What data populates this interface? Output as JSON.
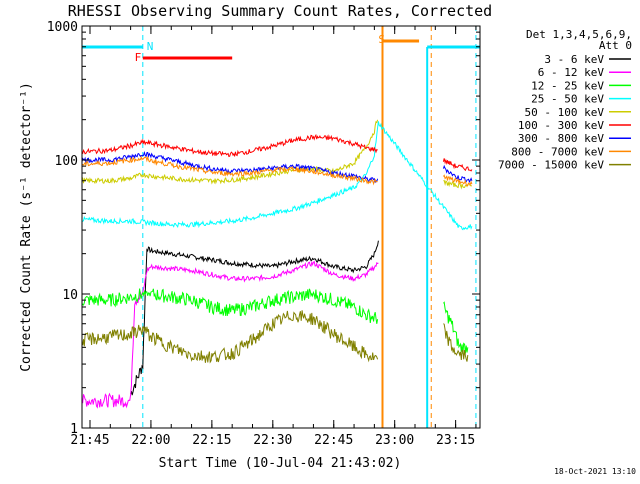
{
  "chart_data": {
    "type": "line",
    "title": "RHESSI Observing Summary Count Rates, Corrected",
    "xlabel": "Start Time (10-Jul-04 21:43:02)",
    "ylabel": "Corrected Count Rate (s⁻¹ detector⁻¹)",
    "yscale": "log",
    "ylim": [
      1,
      1000
    ],
    "xlim": [
      "21:43:02",
      "23:21:00"
    ],
    "x_ticks": [
      "21:45",
      "22:00",
      "22:15",
      "22:30",
      "22:45",
      "23:00",
      "23:15"
    ],
    "y_ticks": [
      "1",
      "10",
      "100",
      "1000"
    ],
    "grid": false,
    "legend": {
      "placement": "right",
      "header": [
        "Det 1,3,4,5,6,9,",
        "Att 0"
      ]
    },
    "flag_labels": {
      "night": "N",
      "flare": "F",
      "saa": "S"
    },
    "intervals": {
      "night": [
        [
          "21:43",
          "21:58"
        ],
        [
          "23:08",
          "23:21"
        ]
      ],
      "flare": [
        [
          "21:58",
          "22:20"
        ]
      ],
      "saa": [
        [
          "22:57",
          "23:06"
        ]
      ]
    },
    "data_gaps": [
      [
        "22:56",
        "23:12"
      ]
    ],
    "vlines": {
      "night_dashed": [
        "21:58",
        "23:20"
      ],
      "saa_solid": [
        "22:57"
      ],
      "saa_dashed": [
        "23:09"
      ]
    },
    "series": [
      {
        "name": "3 - 6 keV",
        "color": "#000000",
        "points": [
          [
            "21:55",
            1.8
          ],
          [
            "21:57",
            2.5
          ],
          [
            "21:58",
            3
          ],
          [
            "21:59",
            22
          ],
          [
            "22:00",
            21
          ],
          [
            "22:05",
            20
          ],
          [
            "22:10",
            19
          ],
          [
            "22:15",
            18
          ],
          [
            "22:20",
            17
          ],
          [
            "22:25",
            16.5
          ],
          [
            "22:30",
            16
          ],
          [
            "22:35",
            17.5
          ],
          [
            "22:40",
            18.5
          ],
          [
            "22:45",
            16
          ],
          [
            "22:50",
            15
          ],
          [
            "22:53",
            16
          ],
          [
            "22:55",
            20
          ],
          [
            "22:56",
            25
          ]
        ]
      },
      {
        "name": "6 - 12 keV",
        "color": "#ff00ff",
        "points": [
          [
            "21:43",
            1.6
          ],
          [
            "21:50",
            1.6
          ],
          [
            "21:55",
            1.6
          ],
          [
            "21:56",
            9
          ],
          [
            "21:58",
            10
          ],
          [
            "21:59",
            15
          ],
          [
            "22:00",
            16
          ],
          [
            "22:05",
            15.5
          ],
          [
            "22:10",
            15
          ],
          [
            "22:15",
            14
          ],
          [
            "22:20",
            13
          ],
          [
            "22:25",
            13
          ],
          [
            "22:30",
            13.5
          ],
          [
            "22:35",
            15
          ],
          [
            "22:40",
            17
          ],
          [
            "22:45",
            14
          ],
          [
            "22:50",
            13
          ],
          [
            "22:53",
            14
          ],
          [
            "22:56",
            17
          ]
        ]
      },
      {
        "name": "12 - 25 keV",
        "color": "#00ff00",
        "points": [
          [
            "21:43",
            9
          ],
          [
            "21:50",
            9
          ],
          [
            "21:55",
            9.5
          ],
          [
            "21:58",
            10
          ],
          [
            "22:00",
            10
          ],
          [
            "22:05",
            9.5
          ],
          [
            "22:10",
            9
          ],
          [
            "22:15",
            8
          ],
          [
            "22:20",
            7.5
          ],
          [
            "22:25",
            8
          ],
          [
            "22:30",
            9
          ],
          [
            "22:35",
            9.5
          ],
          [
            "22:40",
            10
          ],
          [
            "22:45",
            9
          ],
          [
            "22:50",
            8
          ],
          [
            "22:53",
            7
          ],
          [
            "22:56",
            6.5
          ],
          [
            "23:12",
            8
          ],
          [
            "23:14",
            6
          ],
          [
            "23:16",
            4
          ],
          [
            "23:18",
            4
          ]
        ]
      },
      {
        "name": "25 - 50 keV",
        "color": "#00ffff",
        "points": [
          [
            "21:43",
            36
          ],
          [
            "21:50",
            35
          ],
          [
            "21:55",
            35
          ],
          [
            "22:00",
            34
          ],
          [
            "22:05",
            33
          ],
          [
            "22:10",
            33
          ],
          [
            "22:15",
            34
          ],
          [
            "22:20",
            35
          ],
          [
            "22:25",
            37
          ],
          [
            "22:30",
            40
          ],
          [
            "22:35",
            43
          ],
          [
            "22:40",
            48
          ],
          [
            "22:45",
            55
          ],
          [
            "22:50",
            62
          ],
          [
            "22:53",
            78
          ],
          [
            "22:55",
            110
          ],
          [
            "22:56",
            190
          ],
          [
            "23:16",
            31
          ],
          [
            "23:19",
            32
          ]
        ]
      },
      {
        "name": "50 - 100 keV",
        "color": "#cccc00",
        "points": [
          [
            "21:43",
            70
          ],
          [
            "21:50",
            70
          ],
          [
            "21:55",
            73
          ],
          [
            "21:58",
            78
          ],
          [
            "22:00",
            76
          ],
          [
            "22:05",
            73
          ],
          [
            "22:10",
            71
          ],
          [
            "22:15",
            70
          ],
          [
            "22:20",
            71
          ],
          [
            "22:25",
            74
          ],
          [
            "22:30",
            79
          ],
          [
            "22:35",
            84
          ],
          [
            "22:40",
            86
          ],
          [
            "22:45",
            82
          ],
          [
            "22:50",
            95
          ],
          [
            "22:53",
            125
          ],
          [
            "22:55",
            165
          ],
          [
            "22:56",
            220
          ],
          [
            "23:12",
            68
          ],
          [
            "23:15",
            65
          ],
          [
            "23:19",
            64
          ]
        ]
      },
      {
        "name": "100 - 300 keV",
        "color": "#ff0000",
        "points": [
          [
            "21:43",
            115
          ],
          [
            "21:50",
            118
          ],
          [
            "21:55",
            128
          ],
          [
            "21:58",
            135
          ],
          [
            "22:00",
            133
          ],
          [
            "22:05",
            125
          ],
          [
            "22:10",
            117
          ],
          [
            "22:15",
            112
          ],
          [
            "22:20",
            110
          ],
          [
            "22:25",
            117
          ],
          [
            "22:30",
            127
          ],
          [
            "22:35",
            140
          ],
          [
            "22:40",
            148
          ],
          [
            "22:45",
            145
          ],
          [
            "22:50",
            132
          ],
          [
            "22:53",
            123
          ],
          [
            "22:56",
            118
          ],
          [
            "23:12",
            100
          ],
          [
            "23:15",
            90
          ],
          [
            "23:19",
            85
          ]
        ]
      },
      {
        "name": "300 - 800 keV",
        "color": "#0000ff",
        "points": [
          [
            "21:43",
            100
          ],
          [
            "21:50",
            100
          ],
          [
            "21:55",
            106
          ],
          [
            "21:58",
            112
          ],
          [
            "22:00",
            108
          ],
          [
            "22:05",
            100
          ],
          [
            "22:10",
            92
          ],
          [
            "22:15",
            86
          ],
          [
            "22:20",
            83
          ],
          [
            "22:25",
            84
          ],
          [
            "22:30",
            87
          ],
          [
            "22:35",
            90
          ],
          [
            "22:40",
            86
          ],
          [
            "22:45",
            80
          ],
          [
            "22:50",
            76
          ],
          [
            "22:53",
            72
          ],
          [
            "22:56",
            70
          ],
          [
            "23:12",
            88
          ],
          [
            "23:15",
            75
          ],
          [
            "23:19",
            70
          ]
        ]
      },
      {
        "name": "800 - 7000 keV",
        "color": "#ff8800",
        "points": [
          [
            "21:43",
            93
          ],
          [
            "21:50",
            95
          ],
          [
            "21:55",
            100
          ],
          [
            "21:58",
            103
          ],
          [
            "22:00",
            99
          ],
          [
            "22:05",
            92
          ],
          [
            "22:10",
            86
          ],
          [
            "22:15",
            81
          ],
          [
            "22:20",
            79
          ],
          [
            "22:25",
            80
          ],
          [
            "22:30",
            84
          ],
          [
            "22:35",
            86
          ],
          [
            "22:40",
            82
          ],
          [
            "22:45",
            77
          ],
          [
            "22:50",
            73
          ],
          [
            "22:53",
            70
          ],
          [
            "22:56",
            68
          ],
          [
            "23:12",
            75
          ],
          [
            "23:15",
            70
          ],
          [
            "23:19",
            66
          ]
        ]
      },
      {
        "name": "7000 - 15000 keV",
        "color": "#808000",
        "points": [
          [
            "21:43",
            4.5
          ],
          [
            "21:50",
            4.8
          ],
          [
            "21:55",
            5
          ],
          [
            "21:58",
            5.5
          ],
          [
            "22:00",
            4.8
          ],
          [
            "22:05",
            4
          ],
          [
            "22:10",
            3.5
          ],
          [
            "22:15",
            3.4
          ],
          [
            "22:20",
            3.6
          ],
          [
            "22:25",
            4.5
          ],
          [
            "22:30",
            6
          ],
          [
            "22:35",
            7
          ],
          [
            "22:40",
            6.5
          ],
          [
            "22:45",
            5
          ],
          [
            "22:50",
            4
          ],
          [
            "22:53",
            3.5
          ],
          [
            "22:56",
            3.2
          ],
          [
            "23:12",
            5.5
          ],
          [
            "23:14",
            4
          ],
          [
            "23:16",
            3.5
          ],
          [
            "23:18",
            3.5
          ]
        ]
      }
    ]
  },
  "footer": {
    "timestamp": "18-Oct-2021 13:10"
  }
}
